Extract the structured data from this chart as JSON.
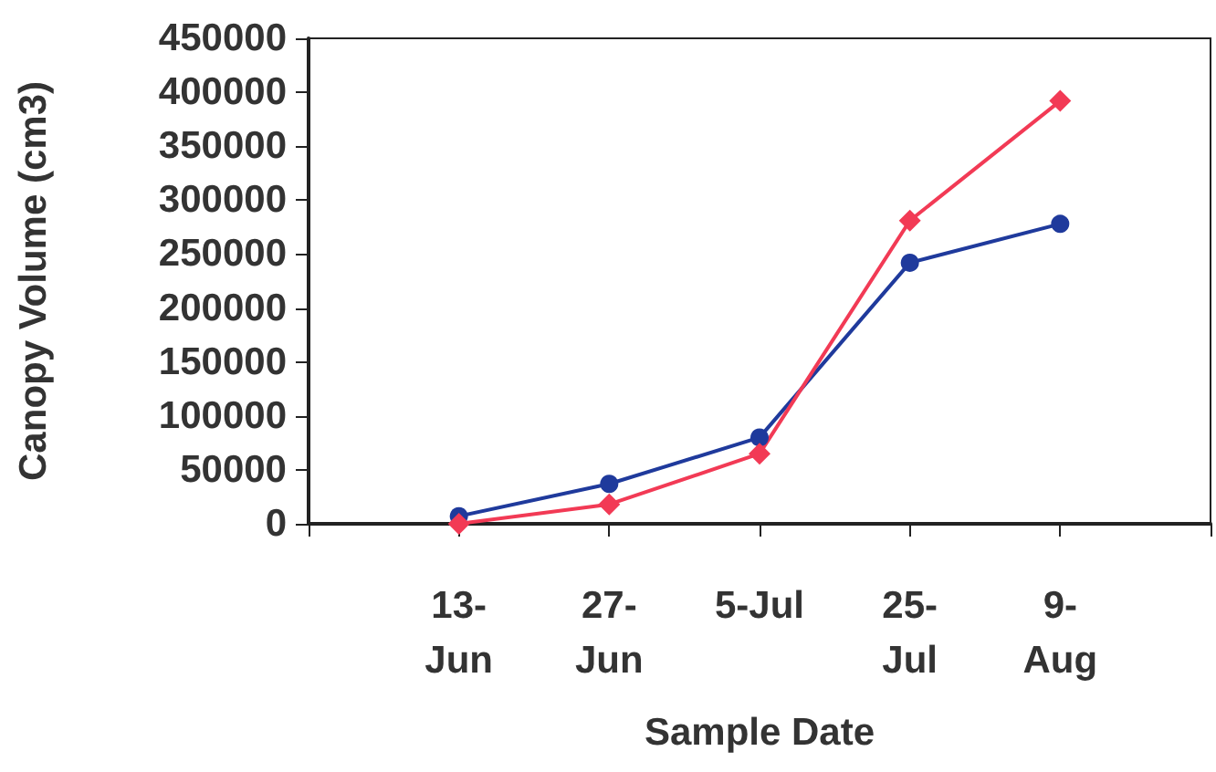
{
  "chart_data": {
    "type": "line",
    "xlabel": "Sample Date",
    "ylabel": "Canopy Volume (cm3)",
    "categories": [
      null,
      "13-Jun",
      "27-Jun",
      "5-Jul",
      "25-Jul",
      "9-Aug",
      null
    ],
    "series": [
      {
        "color": "#1f3a9c",
        "marker": "circle",
        "values": [
          null,
          7000,
          37000,
          80000,
          242000,
          278000,
          null
        ]
      },
      {
        "color": "#f23a55",
        "marker": "diamond",
        "values": [
          null,
          0,
          18000,
          65000,
          281000,
          392000,
          null
        ]
      }
    ],
    "ylim": [
      0,
      450000
    ],
    "yticks": [
      0,
      50000,
      100000,
      150000,
      200000,
      250000,
      300000,
      350000,
      400000,
      450000
    ],
    "grid": false
  }
}
